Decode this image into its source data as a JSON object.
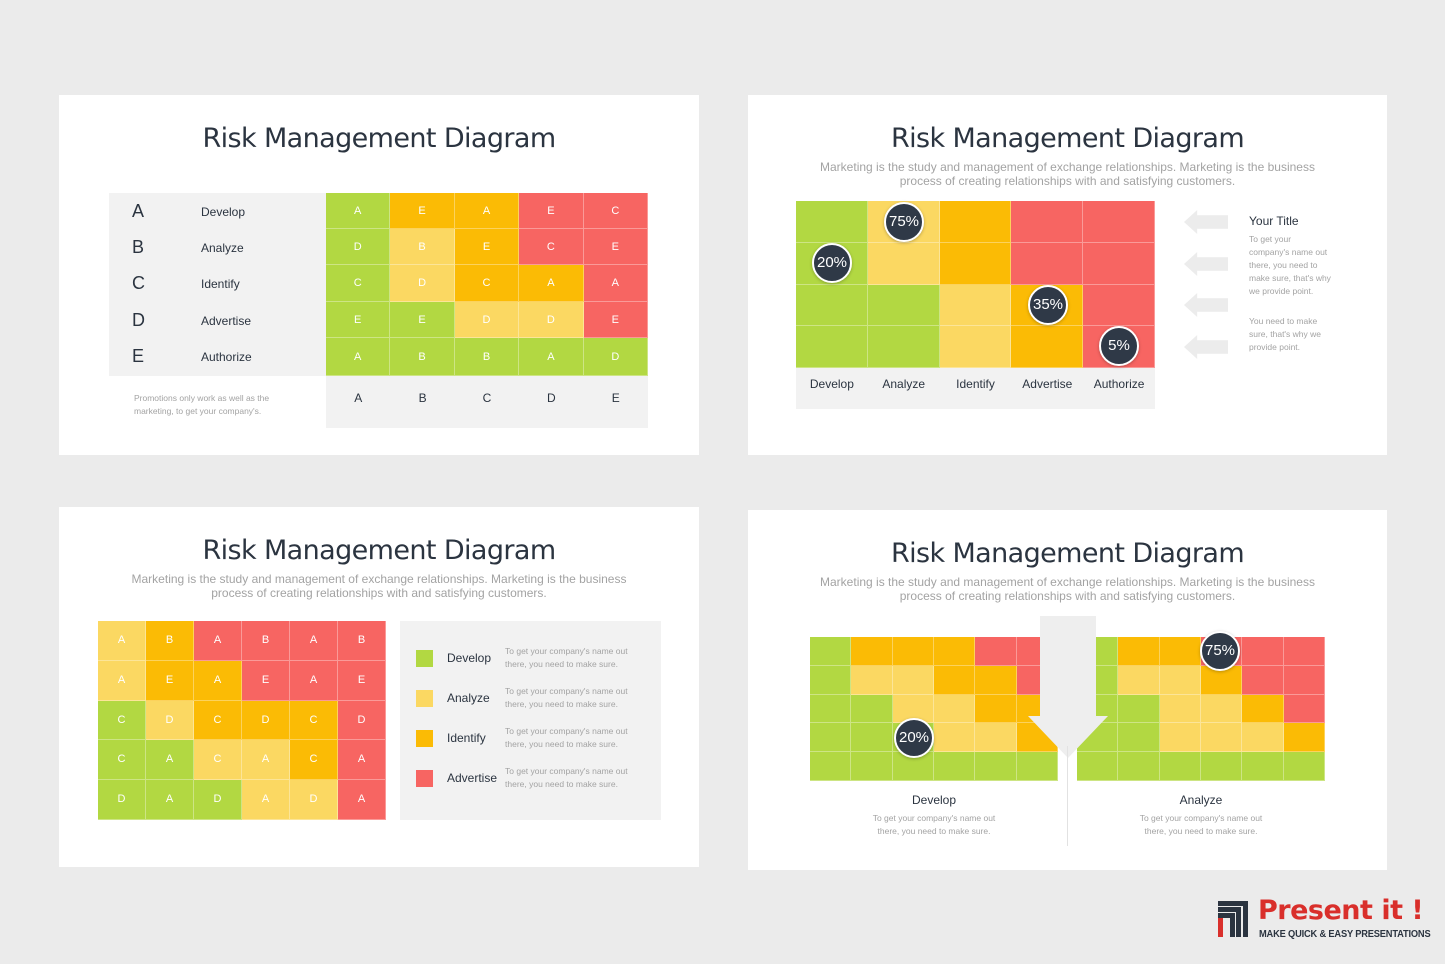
{
  "colors": {
    "green": "#b2d842",
    "light_yellow": "#fbd862",
    "orange": "#fbbb05",
    "red": "#f76562",
    "dark": "#2f3947",
    "brand_red": "#d92f2b",
    "brand_dark": "#2b3440"
  },
  "slide1": {
    "title": "Risk Management Diagram",
    "rows": [
      {
        "letter": "A",
        "label": "Develop"
      },
      {
        "letter": "B",
        "label": "Analyze"
      },
      {
        "letter": "C",
        "label": "Identify"
      },
      {
        "letter": "D",
        "label": "Advertise"
      },
      {
        "letter": "E",
        "label": "Authorize"
      }
    ],
    "grid": [
      [
        {
          "t": "A",
          "c": "green"
        },
        {
          "t": "E",
          "c": "orange"
        },
        {
          "t": "A",
          "c": "orange"
        },
        {
          "t": "E",
          "c": "red"
        },
        {
          "t": "C",
          "c": "red"
        }
      ],
      [
        {
          "t": "D",
          "c": "green"
        },
        {
          "t": "B",
          "c": "light_yellow"
        },
        {
          "t": "E",
          "c": "orange"
        },
        {
          "t": "C",
          "c": "red"
        },
        {
          "t": "E",
          "c": "red"
        }
      ],
      [
        {
          "t": "C",
          "c": "green"
        },
        {
          "t": "D",
          "c": "light_yellow"
        },
        {
          "t": "C",
          "c": "orange"
        },
        {
          "t": "A",
          "c": "orange"
        },
        {
          "t": "A",
          "c": "red"
        }
      ],
      [
        {
          "t": "E",
          "c": "green"
        },
        {
          "t": "E",
          "c": "green"
        },
        {
          "t": "D",
          "c": "light_yellow"
        },
        {
          "t": "D",
          "c": "light_yellow"
        },
        {
          "t": "E",
          "c": "red"
        }
      ],
      [
        {
          "t": "A",
          "c": "green"
        },
        {
          "t": "B",
          "c": "green"
        },
        {
          "t": "B",
          "c": "green"
        },
        {
          "t": "A",
          "c": "green"
        },
        {
          "t": "D",
          "c": "green"
        }
      ]
    ],
    "col_labels": [
      "A",
      "B",
      "C",
      "D",
      "E"
    ],
    "note_line1": "Promotions only work as well as the",
    "note_line2": "marketing, to get your company's."
  },
  "slide2": {
    "title": "Risk Management Diagram",
    "sub1": "Marketing is the study and management of exchange relationships. Marketing is the business",
    "sub2": "process of creating relationships with and satisfying customers.",
    "grid": [
      [
        "green",
        "light_yellow",
        "orange",
        "red",
        "red"
      ],
      [
        "green",
        "light_yellow",
        "orange",
        "red",
        "red"
      ],
      [
        "green",
        "green",
        "light_yellow",
        "orange",
        "red"
      ],
      [
        "green",
        "green",
        "light_yellow",
        "orange",
        "red"
      ]
    ],
    "badges": [
      "75%",
      "20%",
      "35%",
      "5%"
    ],
    "col_labels": [
      "Develop",
      "Analyze",
      "Identify",
      "Advertise",
      "Authorize"
    ],
    "side_title": "Your Title",
    "side_p1": [
      "To get your",
      "company's name out",
      "there, you need to",
      "make sure, that's why",
      "we provide point."
    ],
    "side_p2": [
      "You need to make",
      "sure, that's why we",
      "provide point."
    ]
  },
  "slide3": {
    "title": "Risk Management Diagram",
    "sub1": "Marketing is the study and management of exchange relationships. Marketing is the business",
    "sub2": "process of creating relationships with and satisfying customers.",
    "grid": [
      [
        {
          "t": "A",
          "c": "light_yellow"
        },
        {
          "t": "B",
          "c": "orange"
        },
        {
          "t": "A",
          "c": "red"
        },
        {
          "t": "B",
          "c": "red"
        },
        {
          "t": "A",
          "c": "red"
        },
        {
          "t": "B",
          "c": "red"
        }
      ],
      [
        {
          "t": "A",
          "c": "light_yellow"
        },
        {
          "t": "E",
          "c": "orange"
        },
        {
          "t": "A",
          "c": "orange"
        },
        {
          "t": "E",
          "c": "red"
        },
        {
          "t": "A",
          "c": "red"
        },
        {
          "t": "E",
          "c": "red"
        }
      ],
      [
        {
          "t": "C",
          "c": "green"
        },
        {
          "t": "D",
          "c": "light_yellow"
        },
        {
          "t": "C",
          "c": "orange"
        },
        {
          "t": "D",
          "c": "orange"
        },
        {
          "t": "C",
          "c": "orange"
        },
        {
          "t": "D",
          "c": "red"
        }
      ],
      [
        {
          "t": "C",
          "c": "green"
        },
        {
          "t": "A",
          "c": "green"
        },
        {
          "t": "C",
          "c": "light_yellow"
        },
        {
          "t": "A",
          "c": "light_yellow"
        },
        {
          "t": "C",
          "c": "orange"
        },
        {
          "t": "A",
          "c": "red"
        }
      ],
      [
        {
          "t": "D",
          "c": "green"
        },
        {
          "t": "A",
          "c": "green"
        },
        {
          "t": "D",
          "c": "green"
        },
        {
          "t": "A",
          "c": "light_yellow"
        },
        {
          "t": "D",
          "c": "light_yellow"
        },
        {
          "t": "A",
          "c": "red"
        }
      ]
    ],
    "legend": [
      {
        "label": "Develop",
        "color": "green",
        "d1": "To get your company's name out",
        "d2": "there, you need to make sure."
      },
      {
        "label": "Analyze",
        "color": "light_yellow",
        "d1": "To get your company's name out",
        "d2": "there, you need to make sure."
      },
      {
        "label": "Identify",
        "color": "orange",
        "d1": "To get your company's name out",
        "d2": "there, you need to make sure."
      },
      {
        "label": "Advertise",
        "color": "red",
        "d1": "To get your company's name out",
        "d2": "there, you need to make sure."
      }
    ]
  },
  "slide4": {
    "title": "Risk Management Diagram",
    "sub1": "Marketing is the study and management of exchange relationships. Marketing is the business",
    "sub2": "process of creating relationships with and satisfying customers.",
    "left_grid": [
      [
        "green",
        "orange",
        "orange",
        "orange",
        "red",
        "red"
      ],
      [
        "green",
        "light_yellow",
        "light_yellow",
        "orange",
        "orange",
        "red"
      ],
      [
        "green",
        "green",
        "light_yellow",
        "light_yellow",
        "orange",
        "orange"
      ],
      [
        "green",
        "green",
        "green",
        "light_yellow",
        "light_yellow",
        "orange"
      ],
      [
        "green",
        "green",
        "green",
        "green",
        "green",
        "green"
      ]
    ],
    "right_grid": [
      [
        "green",
        "orange",
        "orange",
        "red",
        "red",
        "red"
      ],
      [
        "green",
        "light_yellow",
        "light_yellow",
        "orange",
        "red",
        "red"
      ],
      [
        "green",
        "green",
        "light_yellow",
        "light_yellow",
        "orange",
        "red"
      ],
      [
        "green",
        "green",
        "light_yellow",
        "light_yellow",
        "light_yellow",
        "orange"
      ],
      [
        "green",
        "green",
        "green",
        "green",
        "green",
        "green"
      ]
    ],
    "left_badge": "20%",
    "right_badge": "75%",
    "left_label": "Develop",
    "left_d1": "To get your company's name out",
    "left_d2": "there, you need to make sure.",
    "right_label": "Analyze",
    "right_d1": "To get your company's name out",
    "right_d2": "there, you need to make sure."
  },
  "brand": {
    "name": "Present it !",
    "tagline": "MAKE QUICK & EASY PRESENTATIONS"
  }
}
